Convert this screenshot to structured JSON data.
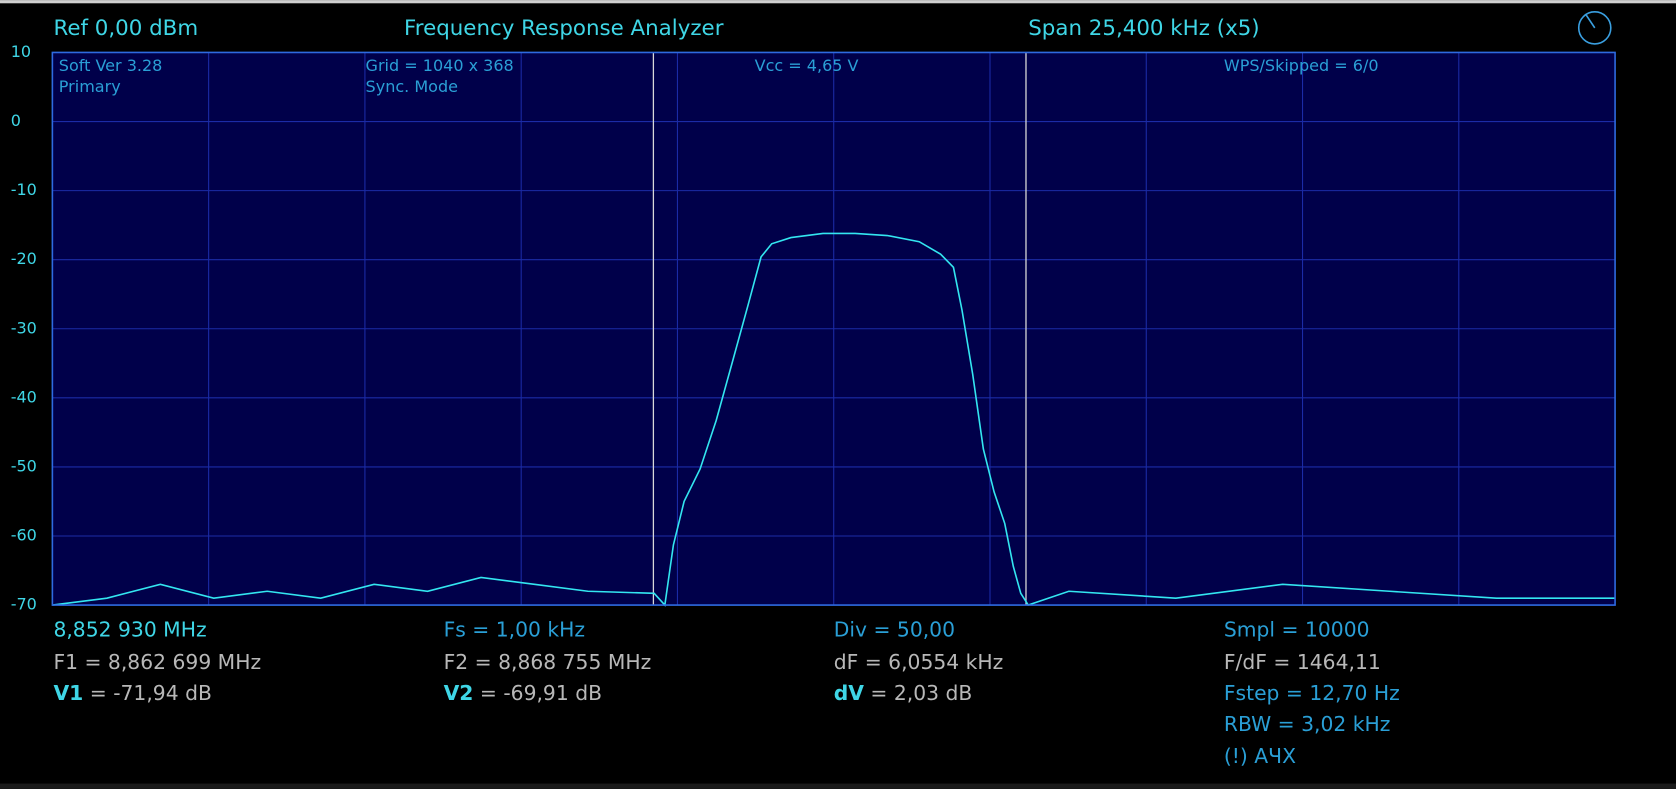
{
  "chart_data": {
    "type": "line",
    "title": "Frequency Response Analyzer",
    "header_left": "Ref  0,00 dBm",
    "header_right": "Span 25,400 kHz (x5)",
    "info": [
      "Soft Ver 3.28",
      "Primary",
      "Grid = 1040 x 368",
      "Sync. Mode",
      "Vcc = 4,65 V",
      "WPS/Skipped  = 6/0"
    ],
    "ylim": [
      -70,
      10
    ],
    "yticks": [
      10,
      0,
      -10,
      -20,
      -30,
      -40,
      -50,
      -60,
      -70
    ],
    "xlim": [
      8.85293,
      8.87833
    ],
    "grid": true,
    "series": [
      {
        "color": "#33e6f0",
        "x": [
          8.85293,
          8.853816,
          8.854685,
          8.855553,
          8.856422,
          8.857291,
          8.858159,
          8.859028,
          8.859897,
          8.860765,
          8.861634,
          8.862711,
          8.862885,
          8.863024,
          8.863198,
          8.863458,
          8.863719,
          8.86398,
          8.86424,
          8.864449,
          8.864622,
          8.864935,
          8.865456,
          8.865978,
          8.866499,
          8.86702,
          8.867367,
          8.867576,
          8.867715,
          8.867889,
          8.868062,
          8.868236,
          8.86841,
          8.868549,
          8.86867,
          8.868792,
          8.869452,
          8.87119,
          8.872927,
          8.874664,
          8.876402,
          8.87833
        ],
        "values": [
          -70,
          -69,
          -67,
          -69,
          -68,
          -69,
          -67,
          -68,
          -66,
          -67,
          -68,
          -68.3,
          -70,
          -61.3,
          -55,
          -50.3,
          -43.3,
          -34.9,
          -26.5,
          -19.6,
          -17.7,
          -16.8,
          -16.2,
          -16.2,
          -16.5,
          -17.4,
          -19.2,
          -21.1,
          -27.3,
          -36.6,
          -47.4,
          -53.6,
          -58.2,
          -64.4,
          -68.3,
          -70,
          -68,
          -69,
          -67,
          -68,
          -69,
          -69
        ]
      }
    ],
    "markers": [
      {
        "value": 8.862699,
        "label": "F1 = 8,862 699 MHz"
      },
      {
        "value": 8.868755,
        "label": "F2 = 8,868 755 MHz"
      }
    ],
    "readout": {
      "start": "8,852 930 MHz",
      "fs": "Fs = 1,00 kHz",
      "div": "Div = 50,00",
      "smpl": "Smpl = 10000",
      "df": "dF = 6,0554 kHz",
      "fdf": "F/dF = 1464,11",
      "v1": {
        "label": "V1",
        "text": "= -71,94 dB"
      },
      "v2": {
        "label": "V2",
        "text": "= -69,91 dB"
      },
      "dv": {
        "label": "dV",
        "text": "= 2,03 dB"
      },
      "fstep": "Fstep = 12,70 Hz",
      "rbw": "RBW = 3,02 kHz",
      "mode": "(!) АЧХ"
    }
  }
}
